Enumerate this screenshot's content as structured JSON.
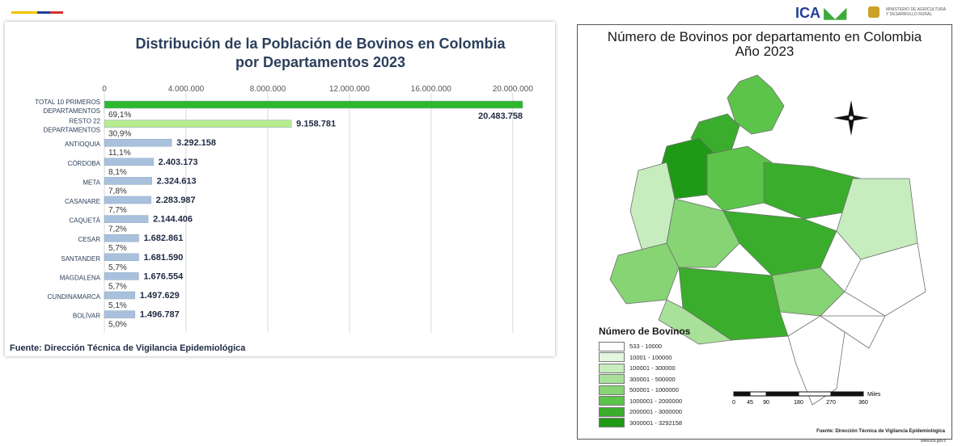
{
  "chart_data": [
    {
      "type": "bar",
      "orientation": "horizontal",
      "title_line1": "Distribución de la Población de Bovinos en Colombia",
      "title_line2": "por Departamentos 2023",
      "xlim": [
        0,
        20483758
      ],
      "xticks": [
        "0",
        "4.000.000",
        "8.000.000",
        "12.000.000",
        "16.000.000",
        "20.000.000"
      ],
      "xtick_values": [
        0,
        4000000,
        8000000,
        12000000,
        16000000,
        20000000
      ],
      "grid": true,
      "categories": [
        {
          "label": [
            "TOTAL 10 PRIMEROS",
            "DEPARTAMENTOS"
          ],
          "value": 20483758,
          "value_label": "20.483.758",
          "pct": "69,1%",
          "color": "#2eb82e"
        },
        {
          "label": [
            "RESTO 22",
            "DEPARTAMENTOS"
          ],
          "value": 9158781,
          "value_label": "9.158.781",
          "pct": "30,9%",
          "color": "#b7ec8e"
        },
        {
          "label": [
            "ANTIOQUIA"
          ],
          "value": 3292158,
          "value_label": "3.292.158",
          "pct": "11,1%",
          "color": "#a9c1dc"
        },
        {
          "label": [
            "CÓRDOBA"
          ],
          "value": 2403173,
          "value_label": "2.403.173",
          "pct": "8,1%",
          "color": "#a9c1dc"
        },
        {
          "label": [
            "META"
          ],
          "value": 2324613,
          "value_label": "2.324.613",
          "pct": "7,8%",
          "color": "#a9c1dc"
        },
        {
          "label": [
            "CASANARE"
          ],
          "value": 2283987,
          "value_label": "2.283.987",
          "pct": "7,7%",
          "color": "#a9c1dc"
        },
        {
          "label": [
            "CAQUETÁ"
          ],
          "value": 2144406,
          "value_label": "2.144.406",
          "pct": "7,2%",
          "color": "#a9c1dc"
        },
        {
          "label": [
            "CESAR"
          ],
          "value": 1682861,
          "value_label": "1.682.861",
          "pct": "5,7%",
          "color": "#a9c1dc"
        },
        {
          "label": [
            "SANTANDER"
          ],
          "value": 1681590,
          "value_label": "1.681.590",
          "pct": "5,7%",
          "color": "#a9c1dc"
        },
        {
          "label": [
            "MAGDALENA"
          ],
          "value": 1676554,
          "value_label": "1.676.554",
          "pct": "5,7%",
          "color": "#a9c1dc"
        },
        {
          "label": [
            "CUNDINAMARCA"
          ],
          "value": 1497629,
          "value_label": "1.497.629",
          "pct": "5,1%",
          "color": "#a9c1dc"
        },
        {
          "label": [
            "BOLÍVAR"
          ],
          "value": 1496787,
          "value_label": "1.496.787",
          "pct": "5,0%",
          "color": "#a9c1dc"
        }
      ],
      "source": "Fuente: Dirección Técnica de Vigilancia Epidemiológica"
    }
  ],
  "map": {
    "title_line1": "Número de Bovinos por departamento en Colombia",
    "title_line2": "Año 2023",
    "legend_title": "Número de Bovinos",
    "legend": [
      {
        "label": "533 - 10000",
        "color": "#ffffff"
      },
      {
        "label": "10001 - 100000",
        "color": "#e4f6de"
      },
      {
        "label": "100001 - 300000",
        "color": "#c7ecbd"
      },
      {
        "label": "300001 - 500000",
        "color": "#a9e19b"
      },
      {
        "label": "500001 - 1000000",
        "color": "#86d474"
      },
      {
        "label": "1000001 - 2000000",
        "color": "#5cc44a"
      },
      {
        "label": "2000001 - 3000000",
        "color": "#3aae2c"
      },
      {
        "label": "3000001 - 3292158",
        "color": "#1f9a17"
      }
    ],
    "scale_label": "Miles",
    "scale_ticks": [
      "0",
      "45",
      "90",
      "180",
      "270",
      "360"
    ],
    "source": "Fuente: Dirección Técnica de Vigilancia Epidemiológica"
  },
  "header": {
    "logo_text": "ICA",
    "ministry_line1": "MINISTERIO DE AGRICULTURA",
    "ministry_line2": "Y DESARROLLO RURAL",
    "url": "www.ica.gov.c"
  }
}
